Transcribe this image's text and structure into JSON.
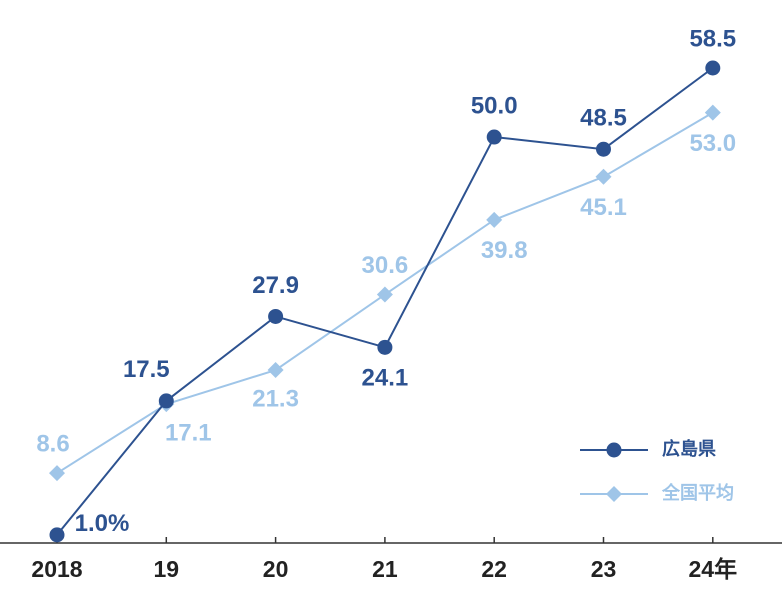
{
  "chart_data": {
    "type": "line",
    "categories": [
      "2018",
      "19",
      "20",
      "21",
      "22",
      "23",
      "24年"
    ],
    "series": [
      {
        "name": "広島県",
        "color": "#2d5290",
        "marker": "circle",
        "values": [
          1.0,
          17.5,
          27.9,
          24.1,
          50.0,
          48.5,
          58.5
        ],
        "value_labels": [
          "1.0%",
          "17.5",
          "27.9",
          "24.1",
          "50.0",
          "48.5",
          "58.5"
        ]
      },
      {
        "name": "全国平均",
        "color": "#9fc5e8",
        "marker": "diamond",
        "values": [
          8.6,
          17.1,
          21.3,
          30.6,
          39.8,
          45.1,
          53.0
        ],
        "value_labels": [
          "8.6",
          "17.1",
          "21.3",
          "30.6",
          "39.8",
          "45.1",
          "53.0"
        ]
      }
    ],
    "legend": "lower right"
  }
}
